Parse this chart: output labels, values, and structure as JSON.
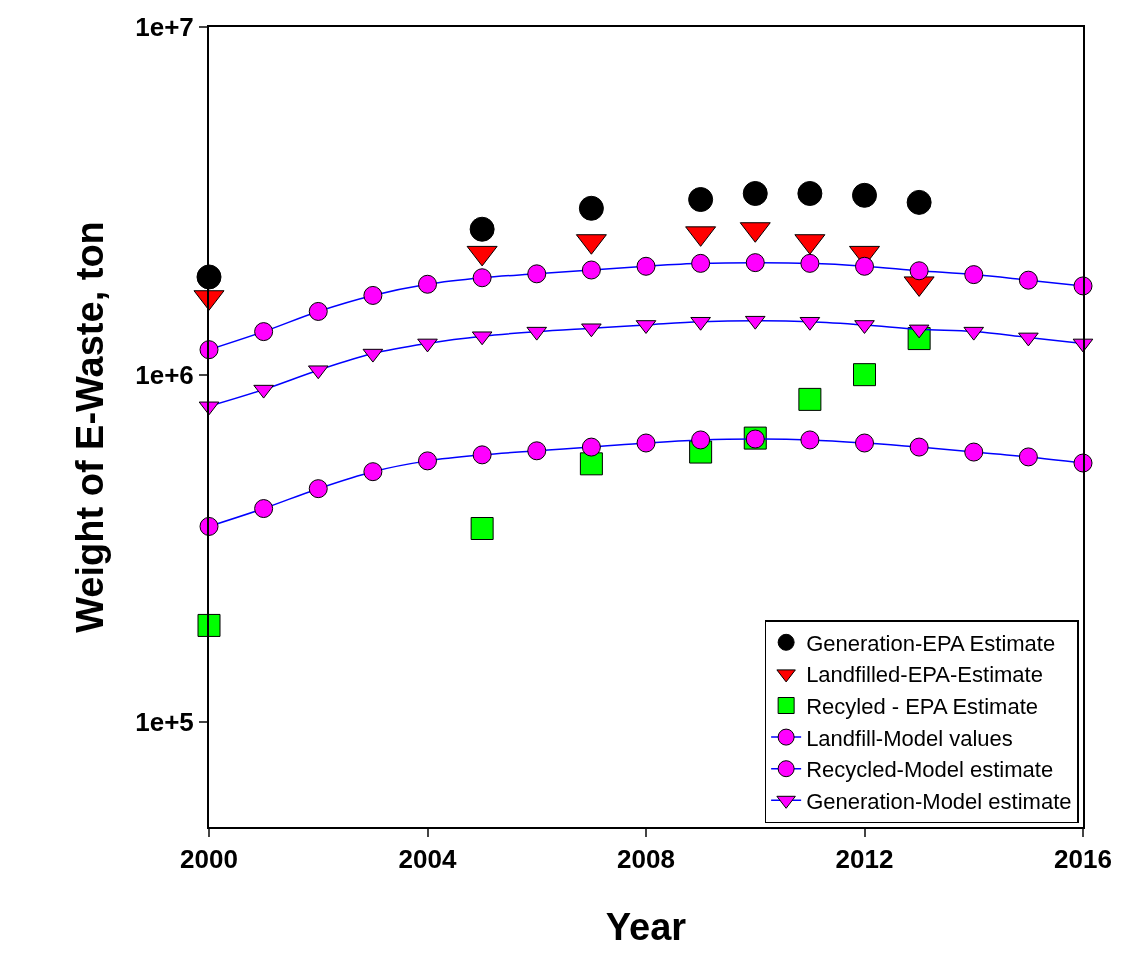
{
  "chart_data": {
    "type": "scatter",
    "xlabel": "Year",
    "ylabel": "Weight of E-Waste, ton",
    "log": "y",
    "xlim": [
      2000,
      2016
    ],
    "xticks": [
      2000,
      2004,
      2008,
      2012,
      2016
    ],
    "ylim": [
      50000,
      10000000
    ],
    "yticks": [
      {
        "value": 100000,
        "label": "1e+5"
      },
      {
        "value": 1000000,
        "label": "1e+6"
      },
      {
        "value": 10000000,
        "label": "1e+7"
      }
    ],
    "legend": "bottom right",
    "series": [
      {
        "name": "Generation-EPA Estimate",
        "marker": "circle",
        "color": "#000000",
        "x": [
          2000,
          2005,
          2007,
          2009,
          2010,
          2011,
          2012,
          2013
        ],
        "values": [
          1910000,
          2620000,
          3010000,
          3190000,
          3320000,
          3320000,
          3280000,
          3130000
        ]
      },
      {
        "name": "Landfilled-EPA-Estimate",
        "marker": "triangle",
        "color": "#ff0000",
        "x": [
          2000,
          2005,
          2007,
          2009,
          2010,
          2011,
          2012,
          2013
        ],
        "values": [
          1670000,
          2240000,
          2420000,
          2550000,
          2620000,
          2420000,
          2240000,
          1830000
        ]
      },
      {
        "name": "Recyled - EPA Estimate",
        "marker": "square",
        "color": "#00ff00",
        "x": [
          2000,
          2005,
          2007,
          2009,
          2010,
          2011,
          2012,
          2013
        ],
        "values": [
          190000,
          361000,
          554000,
          599000,
          657000,
          849000,
          1000000,
          1270000
        ]
      },
      {
        "name": "Landfill-Model values",
        "type": "line",
        "marker": "circle",
        "color": "#0000ff",
        "colors": [
          "#ff00ff",
          "#ff00ff",
          "#ff00ff",
          "#ff00ff",
          "#ff00ff",
          "#ff00ff",
          "#ff00ff",
          "#ff00ff",
          "#ff00ff",
          "#ff00ff",
          "#ff00ff",
          "#ff00ff",
          "#ff00ff",
          "#ff00ff",
          "#ff00ff",
          "#ff00ff",
          "#ff00ff"
        ],
        "x": [
          2000,
          2001,
          2002,
          2003,
          2004,
          2005,
          2006,
          2007,
          2008,
          2009,
          2010,
          2011,
          2012,
          2013,
          2014,
          2015,
          2016
        ],
        "values": [
          1180000,
          1330000,
          1520000,
          1690000,
          1820000,
          1900000,
          1950000,
          2000000,
          2050000,
          2090000,
          2100000,
          2090000,
          2050000,
          1990000,
          1940000,
          1870000,
          1800000
        ]
      },
      {
        "name": "Recycled-Model estimate",
        "type": "line",
        "marker": "circle",
        "color": "#0000ff",
        "colors": [
          "#ff00ff",
          "#ff00ff",
          "#ff00ff",
          "#ff00ff",
          "#ff00ff",
          "#ff00ff",
          "#ff00ff",
          "#ff00ff",
          "#ff00ff",
          "#ff00ff",
          "#ff00ff",
          "#ff00ff",
          "#ff00ff",
          "#ff00ff",
          "#ff00ff",
          "#ff00ff",
          "#ff00ff"
        ],
        "x": [
          2000,
          2001,
          2002,
          2003,
          2004,
          2005,
          2006,
          2007,
          2008,
          2009,
          2010,
          2011,
          2012,
          2013,
          2014,
          2015,
          2016
        ],
        "values": [
          366000,
          412000,
          470000,
          526000,
          565000,
          588000,
          604000,
          619000,
          636000,
          649000,
          653000,
          649000,
          636000,
          619000,
          599000,
          580000,
          557000
        ]
      },
      {
        "name": "Generation-Model estimate",
        "type": "line",
        "marker": "triangle",
        "color": "#0000ff",
        "colors": [
          "#ff00ff",
          "#ff00ff",
          "#ff00ff",
          "#ff00ff",
          "#ff00ff",
          "#ff00ff",
          "#ff00ff",
          "#ff00ff",
          "#ff00ff",
          "#ff00ff",
          "#ff00ff",
          "#ff00ff",
          "#ff00ff",
          "#ff00ff",
          "#ff00ff",
          "#ff00ff",
          "#ff00ff"
        ],
        "x": [
          2000,
          2001,
          2002,
          2003,
          2004,
          2005,
          2006,
          2007,
          2008,
          2009,
          2010,
          2011,
          2012,
          2013,
          2014,
          2015,
          2016
        ],
        "values": [
          811000,
          906000,
          1030000,
          1150000,
          1230000,
          1290000,
          1330000,
          1360000,
          1390000,
          1420000,
          1430000,
          1420000,
          1390000,
          1350000,
          1330000,
          1280000,
          1230000
        ]
      }
    ]
  }
}
